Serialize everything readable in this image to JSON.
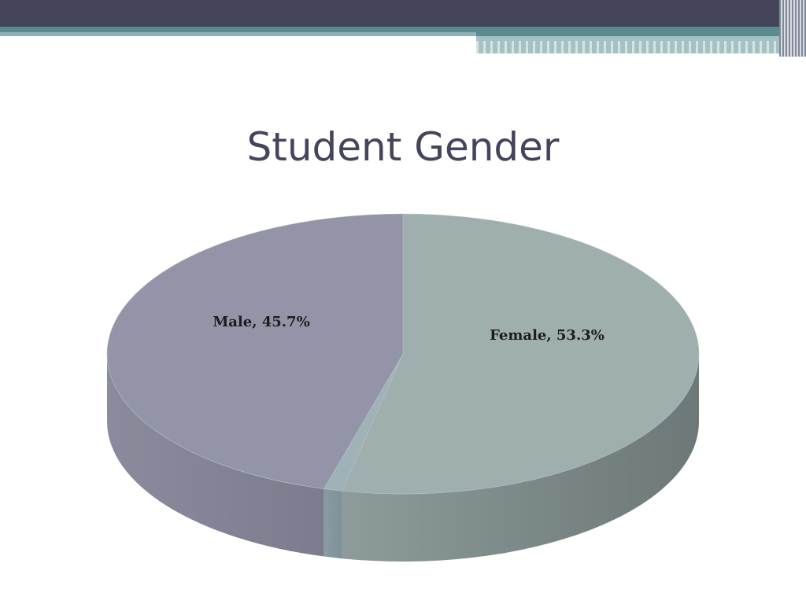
{
  "title": "Student Gender",
  "chart_data": {
    "type": "pie",
    "title": "Student Gender",
    "categories": [
      "Male",
      "Female"
    ],
    "values": [
      45.7,
      53.3
    ],
    "labels": [
      "Male, 45.7%",
      "Female, 53.3%"
    ],
    "colors": {
      "Male": "#9394a7",
      "Female": "#9eafae"
    }
  }
}
